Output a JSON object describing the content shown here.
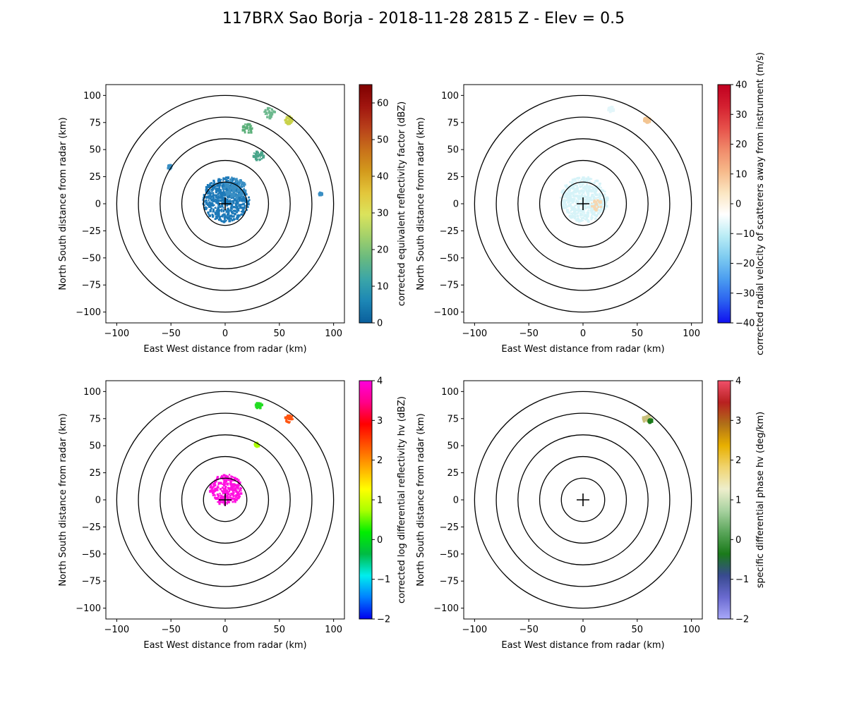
{
  "figure": {
    "title": "117BRX Sao Borja - 2018-11-28 2815 Z -  Elev = 0.5"
  },
  "chart_data": [
    {
      "type": "heatmap",
      "field": "corrected equivalent reflectivity factor",
      "xlabel": "East West distance from radar (km)",
      "ylabel": "North South distance from radar (km)",
      "xlim": [
        -110,
        110
      ],
      "ylim": [
        -110,
        110
      ],
      "xticks": [
        "−100",
        "−50",
        "0",
        "50",
        "100"
      ],
      "yticks": [
        "100",
        "75",
        "50",
        "25",
        "0",
        "−25",
        "−50",
        "−75",
        "−100"
      ],
      "range_rings_km": [
        20,
        40,
        60,
        80,
        100
      ],
      "colorbar": {
        "label": "corrected equivalent reflectivity factor (dBZ)",
        "min": 0,
        "max": 65,
        "ticks": [
          "0",
          "10",
          "20",
          "30",
          "40",
          "50",
          "60"
        ],
        "colors": [
          "#0a5f9c",
          "#1c86b5",
          "#3aa5a8",
          "#69ba7f",
          "#a3d16a",
          "#dbe35c",
          "#e3c63b",
          "#d39a1c",
          "#c8701a",
          "#b8401a",
          "#a0150f",
          "#7f0000"
        ]
      },
      "echoes": [
        {
          "x": 0,
          "y": 5,
          "r": 22,
          "color": "#1d79b8"
        },
        {
          "x": 8,
          "y": 15,
          "r": 10,
          "color": "#3a8fc4"
        },
        {
          "x": 20,
          "y": 70,
          "r": 5,
          "color": "#5cb07a"
        },
        {
          "x": 40,
          "y": 85,
          "r": 5,
          "color": "#6db98e"
        },
        {
          "x": 58,
          "y": 78,
          "r": 4,
          "color": "#c9d24a"
        },
        {
          "x": 30,
          "y": 45,
          "r": 5,
          "color": "#49a58a"
        },
        {
          "x": -52,
          "y": 35,
          "r": 2,
          "color": "#3a8fc4"
        },
        {
          "x": 87,
          "y": 10,
          "r": 1.5,
          "color": "#3a8fc4"
        }
      ]
    },
    {
      "type": "heatmap",
      "field": "corrected radial velocity of scatterers away from instrument",
      "xlabel": "East West distance from radar (km)",
      "ylabel": "North South distance from radar (km)",
      "xlim": [
        -110,
        110
      ],
      "ylim": [
        -110,
        110
      ],
      "xticks": [
        "−100",
        "−50",
        "0",
        "50",
        "100"
      ],
      "yticks": [
        "100",
        "75",
        "50",
        "25",
        "0",
        "−25",
        "−50",
        "−75",
        "−100"
      ],
      "range_rings_km": [
        20,
        40,
        60,
        80,
        100
      ],
      "colorbar": {
        "label": "corrected radial velocity of scatterers away from instrument (m/s)",
        "min": -40,
        "max": 40,
        "ticks": [
          "40",
          "30",
          "20",
          "10",
          "0",
          "−10",
          "−20",
          "−30",
          "−40"
        ],
        "colors": [
          "#1010f0",
          "#2a60f0",
          "#4a9cf0",
          "#7ccaf0",
          "#b9ecf5",
          "#ffffff",
          "#fbe6c2",
          "#f6b98a",
          "#f08a6a",
          "#e6504a",
          "#d42030",
          "#c00020"
        ]
      },
      "echoes": [
        {
          "x": 0,
          "y": 5,
          "r": 22,
          "color": "#d6f3f8"
        },
        {
          "x": 12,
          "y": 0,
          "r": 5,
          "color": "#f6d6b0"
        },
        {
          "x": 58,
          "y": 78,
          "r": 3,
          "color": "#f3c592"
        },
        {
          "x": 25,
          "y": 88,
          "r": 3,
          "color": "#e3f6fa"
        }
      ]
    },
    {
      "type": "heatmap",
      "field": "corrected log differential reflectivity hv",
      "xlabel": "East West distance from radar (km)",
      "ylabel": "North South distance from radar (km)",
      "xlim": [
        -110,
        110
      ],
      "ylim": [
        -110,
        110
      ],
      "xticks": [
        "−100",
        "−50",
        "0",
        "50",
        "100"
      ],
      "yticks": [
        "100",
        "75",
        "50",
        "25",
        "0",
        "−25",
        "−50",
        "−75",
        "−100"
      ],
      "range_rings_km": [
        20,
        40,
        60,
        80,
        100
      ],
      "colorbar": {
        "label": "corrected log differential reflectivity hv (dBZ)",
        "min": -2,
        "max": 4,
        "ticks": [
          "4",
          "3",
          "2",
          "1",
          "0",
          "−1",
          "−2"
        ],
        "colors": [
          "#0000ee",
          "#0080ff",
          "#00eeee",
          "#00bb44",
          "#00ee00",
          "#aaff00",
          "#ffff00",
          "#ffaa00",
          "#ff5500",
          "#ff0000",
          "#ff0088",
          "#ff00dd"
        ]
      },
      "echoes": [
        {
          "x": 0,
          "y": 10,
          "r": 15,
          "color": "#ff10e0"
        },
        {
          "x": 58,
          "y": 76,
          "r": 4,
          "color": "#ff5510"
        },
        {
          "x": 30,
          "y": 88,
          "r": 3,
          "color": "#22dd22"
        },
        {
          "x": 28,
          "y": 52,
          "r": 2,
          "color": "#aaff00"
        }
      ]
    },
    {
      "type": "heatmap",
      "field": "specific differential phase hv",
      "xlabel": "East West distance from radar (km)",
      "ylabel": "North South distance from radar (km)",
      "xlim": [
        -110,
        110
      ],
      "ylim": [
        -110,
        110
      ],
      "xticks": [
        "−100",
        "−50",
        "0",
        "50",
        "100"
      ],
      "yticks": [
        "100",
        "75",
        "50",
        "25",
        "0",
        "−25",
        "−50",
        "−75",
        "−100"
      ],
      "range_rings_km": [
        20,
        40,
        60,
        80,
        100
      ],
      "colorbar": {
        "label": "specific differential phase hv (deg/km)",
        "min": -2,
        "max": 4,
        "ticks": [
          "4",
          "3",
          "2",
          "1",
          "0",
          "−1",
          "−2"
        ],
        "colors": [
          "#a8a8f8",
          "#6a6ad0",
          "#384a90",
          "#1a7a1a",
          "#5aa55a",
          "#a8d2a0",
          "#eeeecc",
          "#f0d470",
          "#e8b000",
          "#b07018",
          "#b82020",
          "#f0506a"
        ]
      },
      "echoes": [
        {
          "x": 58,
          "y": 76,
          "r": 4,
          "color": "#c9c07a"
        },
        {
          "x": 61,
          "y": 74,
          "r": 2,
          "color": "#1a7a1a"
        }
      ]
    }
  ]
}
